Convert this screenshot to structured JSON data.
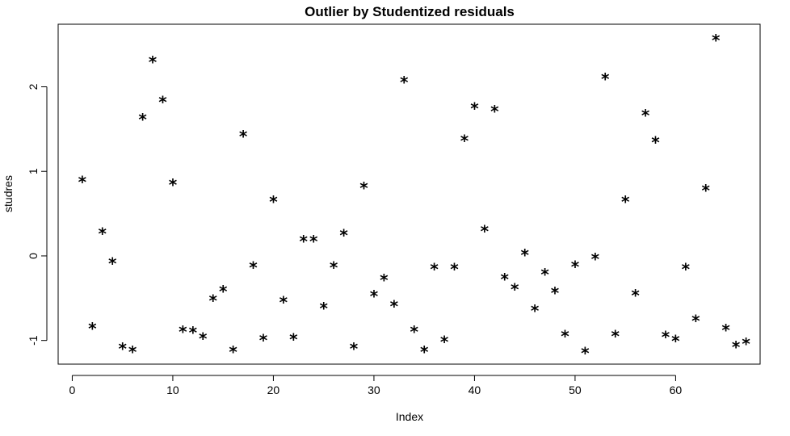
{
  "chart_data": {
    "type": "scatter",
    "title": "Outlier by Studentized residuals",
    "xlabel": "Index",
    "ylabel": "studres",
    "marker": "*",
    "xlim": [
      -1.4,
      68.4
    ],
    "ylim": [
      -1.28,
      2.74
    ],
    "xticks": [
      0,
      10,
      20,
      30,
      40,
      50,
      60
    ],
    "yticks": [
      -1,
      0,
      1,
      2
    ],
    "x": [
      1,
      2,
      3,
      4,
      5,
      6,
      7,
      8,
      9,
      10,
      11,
      12,
      13,
      14,
      15,
      16,
      17,
      18,
      19,
      20,
      21,
      22,
      23,
      24,
      25,
      26,
      27,
      28,
      29,
      30,
      31,
      32,
      33,
      34,
      35,
      36,
      37,
      38,
      39,
      40,
      41,
      42,
      43,
      44,
      45,
      46,
      47,
      48,
      49,
      50,
      51,
      52,
      53,
      54,
      55,
      56,
      57,
      58,
      59,
      60,
      61,
      62,
      63,
      64,
      65,
      66,
      67
    ],
    "y": [
      0.89,
      -0.84,
      0.28,
      -0.07,
      -1.08,
      -1.12,
      1.63,
      2.31,
      1.84,
      0.86,
      -0.88,
      -0.89,
      -0.96,
      -0.51,
      -0.4,
      -1.12,
      1.43,
      -0.12,
      -0.98,
      0.66,
      -0.53,
      -0.97,
      0.19,
      0.19,
      -0.6,
      -0.12,
      0.26,
      -1.08,
      0.82,
      -0.46,
      -0.27,
      -0.58,
      2.07,
      -0.88,
      -1.12,
      -0.14,
      -1.0,
      -0.14,
      1.38,
      1.76,
      0.31,
      1.73,
      -0.26,
      -0.38,
      0.03,
      -0.63,
      -0.2,
      -0.42,
      -0.93,
      -0.11,
      -1.13,
      -0.02,
      2.11,
      -0.93,
      0.66,
      -0.45,
      1.68,
      1.36,
      -0.94,
      -0.99,
      -0.14,
      -0.75,
      0.79,
      2.57,
      -0.86,
      -1.06,
      -1.02
    ]
  }
}
